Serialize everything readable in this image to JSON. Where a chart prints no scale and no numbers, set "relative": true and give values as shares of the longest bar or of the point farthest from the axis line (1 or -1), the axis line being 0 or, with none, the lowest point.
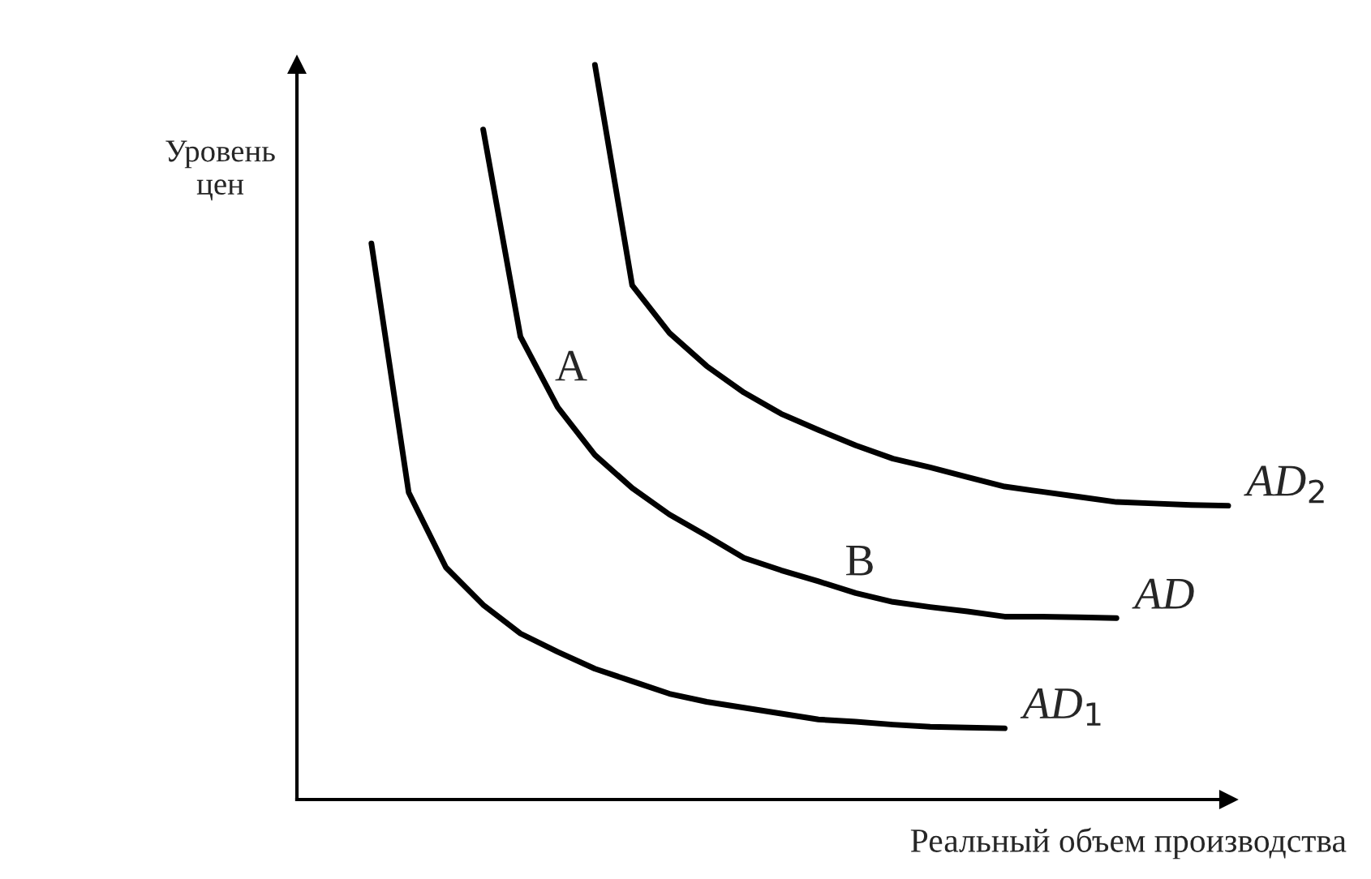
{
  "chart_data": {
    "type": "line",
    "relative": true,
    "xlabel": "Реальный объем производства",
    "ylabel": "Уровень\nцен",
    "legend": false,
    "marker": "none",
    "line_style": "solid",
    "categories": [
      null,
      null,
      null,
      null,
      null,
      null,
      null,
      null,
      null,
      null,
      null,
      null,
      null,
      null,
      null,
      null,
      null,
      null,
      null,
      null,
      null,
      null,
      null,
      null
    ],
    "series": [
      {
        "name": "AD$_{1}$",
        "color": "#000000",
        "values": [
          0.757,
          0.418,
          0.316,
          0.265,
          0.226,
          0.201,
          0.178,
          0.161,
          0.144,
          0.133,
          0.125,
          0.117,
          0.109,
          0.106,
          0.102,
          0.099,
          0.098,
          0.097,
          null,
          null,
          null,
          null,
          null,
          null
        ]
      },
      {
        "name": "AD",
        "color": "#000000",
        "values": [
          null,
          null,
          null,
          0.912,
          0.63,
          0.534,
          0.469,
          0.424,
          0.388,
          0.359,
          0.329,
          0.312,
          0.297,
          0.281,
          0.269,
          0.262,
          0.256,
          0.249,
          0.249,
          0.248,
          0.247,
          null,
          null,
          null
        ]
      },
      {
        "name": "AD$_{2}$",
        "color": "#000000",
        "values": [
          null,
          null,
          null,
          null,
          null,
          null,
          1.0,
          0.7,
          0.635,
          0.59,
          0.554,
          0.525,
          0.503,
          0.482,
          0.464,
          0.452,
          0.439,
          0.426,
          0.419,
          0.412,
          0.405,
          0.403,
          0.401,
          0.4
        ]
      }
    ],
    "annotations": [
      "A",
      "B"
    ]
  }
}
